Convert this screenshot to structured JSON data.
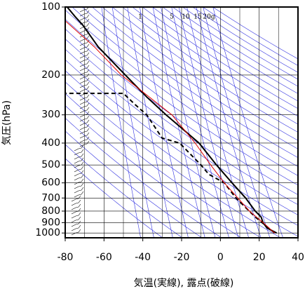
{
  "chart_data": {
    "type": "line",
    "x_label": "気温(実線), 露点(破線)",
    "y_label": "気圧(hPa)",
    "xlim": [
      -80,
      40
    ],
    "xticks": [
      -80,
      -60,
      -40,
      -20,
      0,
      20,
      40
    ],
    "ylim": [
      1050,
      100
    ],
    "yticks": [
      100,
      200,
      300,
      400,
      500,
      600,
      700,
      800,
      900,
      1000
    ],
    "ylog": true,
    "grid": true,
    "annotations": [
      "1",
      "5",
      "10",
      "15",
      "20g"
    ],
    "series": [
      {
        "color": "#000000",
        "dash": false,
        "x": [
          29,
          24,
          22,
          21,
          18,
          13,
          6,
          -2,
          -11,
          -28,
          -38,
          -49,
          -63,
          -71,
          -75,
          -79
        ],
        "y": [
          1000,
          950,
          900,
          850,
          800,
          700,
          600,
          500,
          400,
          300,
          250,
          200,
          150,
          120,
          110,
          100
        ]
      },
      {
        "color": "#000000",
        "dash": true,
        "x": [
          28,
          18,
          8,
          2,
          -6,
          -10,
          -21,
          -30,
          -38,
          -44,
          -50,
          -80
        ],
        "y": [
          1000,
          850,
          700,
          600,
          550,
          500,
          400,
          380,
          300,
          270,
          241,
          241
        ]
      },
      {
        "color": "#e00000",
        "dash": false,
        "x": [
          28,
          22,
          15,
          9,
          2,
          -5,
          -13,
          -25,
          -51,
          -65,
          -80
        ],
        "y": [
          1000,
          900,
          800,
          700,
          600,
          500,
          400,
          300,
          200,
          150,
          115
        ]
      }
    ]
  }
}
